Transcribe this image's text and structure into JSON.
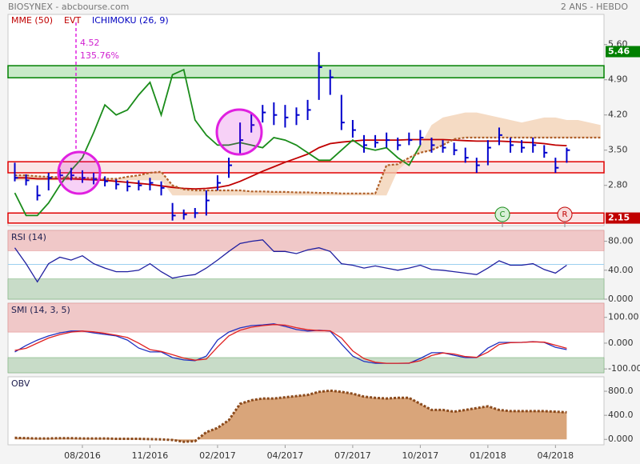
{
  "chart_data": [
    {
      "type": "ohlc",
      "title": "BIOSYNEX - abcbourse.com",
      "subtitle": "2 ANS - HEBDO",
      "indicators": [
        {
          "name": "MME (50)",
          "color": "#c00000"
        },
        {
          "name": "EVT",
          "color": "#c00000"
        },
        {
          "name": "ICHIMOKU (26, 9)",
          "color": "#0000c0"
        }
      ],
      "categories": [
        null,
        null,
        null,
        null,
        null,
        null,
        "08/2016",
        null,
        null,
        null,
        null,
        null,
        "11/2016",
        null,
        null,
        null,
        null,
        null,
        "02/2017",
        null,
        null,
        null,
        null,
        null,
        "04/2017",
        null,
        null,
        null,
        null,
        null,
        "07/2017",
        null,
        null,
        null,
        null,
        null,
        "10/2017",
        null,
        null,
        null,
        null,
        null,
        "01/2018",
        null,
        null,
        null,
        null,
        null,
        "04/2018",
        null,
        null,
        null,
        null
      ],
      "color": "#0000cc",
      "high": [
        3.25,
        3.02,
        2.8,
        3.05,
        3.12,
        3.15,
        3.1,
        3.05,
        2.98,
        2.92,
        2.9,
        2.9,
        2.95,
        2.88,
        2.45,
        2.32,
        2.35,
        2.7,
        3.0,
        3.35,
        4.05,
        4.25,
        4.4,
        4.45,
        4.4,
        4.35,
        4.5,
        5.45,
        5.1,
        4.6,
        4.1,
        3.8,
        3.8,
        3.85,
        3.75,
        3.85,
        3.9,
        3.75,
        3.7,
        3.65,
        3.55,
        3.35,
        3.7,
        3.95,
        3.75,
        3.7,
        3.75,
        3.6,
        3.35,
        3.55,
        null,
        null,
        null
      ],
      "low": [
        2.88,
        2.8,
        2.5,
        2.7,
        2.88,
        2.9,
        2.85,
        2.82,
        2.78,
        2.72,
        2.68,
        2.7,
        2.7,
        2.6,
        2.1,
        2.12,
        2.15,
        2.2,
        2.7,
        2.95,
        3.4,
        3.85,
        4.05,
        4.0,
        3.95,
        4.0,
        4.1,
        4.5,
        4.6,
        3.9,
        3.75,
        3.45,
        3.55,
        3.55,
        3.5,
        3.6,
        3.6,
        3.45,
        3.45,
        3.4,
        3.25,
        3.05,
        3.2,
        3.6,
        3.45,
        3.45,
        3.45,
        3.35,
        3.05,
        3.25,
        null,
        null,
        null
      ],
      "close": [
        2.95,
        2.9,
        2.6,
        2.95,
        3.0,
        3.0,
        2.95,
        2.92,
        2.88,
        2.82,
        2.78,
        2.8,
        2.85,
        2.75,
        2.2,
        2.22,
        2.25,
        2.5,
        2.85,
        3.2,
        3.7,
        4.0,
        4.25,
        4.2,
        4.15,
        4.2,
        4.3,
        5.15,
        4.95,
        4.05,
        3.9,
        3.6,
        3.65,
        3.7,
        3.6,
        3.7,
        3.75,
        3.6,
        3.55,
        3.5,
        3.35,
        3.2,
        3.55,
        3.8,
        3.6,
        3.55,
        3.6,
        3.45,
        3.15,
        3.5,
        null,
        null,
        null
      ],
      "series": [
        {
          "name": "MME (50)",
          "color": "#c00000",
          "values": [
            2.95,
            2.95,
            2.93,
            2.93,
            2.93,
            2.93,
            2.92,
            2.91,
            2.9,
            2.88,
            2.86,
            2.84,
            2.82,
            2.79,
            2.76,
            2.74,
            2.73,
            2.74,
            2.76,
            2.8,
            2.88,
            2.98,
            3.08,
            3.17,
            3.26,
            3.34,
            3.42,
            3.55,
            3.63,
            3.66,
            3.68,
            3.7,
            3.7,
            3.7,
            3.7,
            3.71,
            3.71,
            3.71,
            3.71,
            3.7,
            3.69,
            3.68,
            3.68,
            3.68,
            3.67,
            3.66,
            3.65,
            3.63,
            3.6,
            3.59,
            null,
            null,
            null
          ]
        },
        {
          "color": "#1a8c1a",
          "values": [
            2.65,
            2.2,
            2.2,
            2.45,
            2.8,
            3.1,
            3.35,
            3.85,
            4.4,
            4.2,
            4.3,
            4.6,
            4.85,
            4.2,
            5.0,
            5.1,
            4.1,
            3.8,
            3.6,
            3.6,
            3.65,
            3.6,
            3.55,
            3.75,
            3.7,
            3.6,
            3.45,
            3.3,
            3.3,
            3.5,
            3.7,
            3.55,
            3.5,
            3.55,
            3.35,
            3.2,
            3.6,
            null,
            null,
            null,
            null,
            null,
            null,
            null,
            null,
            null,
            null,
            null,
            null,
            null,
            null,
            null,
            null
          ]
        },
        {
          "color": "#b0602a",
          "style": "dotted",
          "values": [
            3.0,
            3.0,
            2.98,
            2.97,
            2.96,
            2.96,
            2.95,
            2.94,
            2.93,
            2.93,
            2.97,
            3.0,
            3.05,
            3.07,
            2.8,
            2.72,
            2.7,
            2.7,
            2.7,
            2.7,
            2.7,
            2.68,
            2.68,
            2.67,
            2.67,
            2.66,
            2.66,
            2.65,
            2.65,
            2.64,
            2.64,
            2.64,
            2.64,
            3.2,
            3.22,
            3.35,
            3.45,
            3.5,
            3.6,
            3.72,
            3.75,
            3.75,
            3.75,
            3.75,
            3.75,
            3.75,
            3.75,
            3.75,
            3.75,
            3.75,
            3.75,
            3.75,
            3.75
          ]
        }
      ],
      "cloud": {
        "color": "#f2cfb0",
        "values": [
          2.9,
          2.9,
          2.9,
          2.9,
          2.9,
          2.9,
          2.9,
          2.9,
          2.9,
          2.9,
          2.9,
          2.9,
          2.9,
          2.9,
          2.6,
          2.6,
          2.6,
          2.6,
          2.6,
          2.6,
          2.6,
          2.6,
          2.6,
          2.6,
          2.6,
          2.6,
          2.6,
          2.6,
          2.6,
          2.6,
          2.6,
          2.6,
          2.6,
          2.6,
          3.1,
          3.3,
          3.6,
          4.0,
          4.15,
          4.2,
          4.25,
          4.25,
          4.2,
          4.15,
          4.1,
          4.05,
          4.1,
          4.15,
          4.15,
          4.1,
          4.1,
          4.05,
          4.0
        ]
      },
      "zones": [
        {
          "range": [
            4.94,
            5.18
          ],
          "color": "#008000",
          "fill": "#c8eac8"
        },
        {
          "range": [
            3.05,
            3.27
          ],
          "color": "#e00000",
          "fill": "#fbe6e6"
        },
        {
          "range": [
            2.05,
            2.25
          ],
          "color": "#e00000",
          "fill": "#fbe6e6"
        }
      ],
      "price_labels": [
        {
          "value": 5.46,
          "color": "#008000"
        },
        {
          "value": 2.15,
          "color": "#c00000"
        }
      ],
      "event_labels": [
        "4.52",
        "135.76%"
      ],
      "signals": [
        "C",
        "R"
      ],
      "ylim": [
        2.0,
        6.2
      ],
      "yticks": [
        {
          "value": 5.6,
          "label": "5.60"
        },
        {
          "value": 4.9,
          "label": "4.90"
        },
        {
          "value": 4.2,
          "label": "4.20"
        },
        {
          "value": 3.5,
          "label": "3.50"
        },
        {
          "value": 2.8,
          "label": "2.80"
        }
      ]
    },
    {
      "type": "line",
      "title": "RSI (14)",
      "series": [
        {
          "color": "#2020a0",
          "values": [
            71,
            49,
            24,
            49,
            58,
            54,
            60,
            49,
            43,
            38,
            38,
            40,
            49,
            38,
            29,
            32,
            34,
            43,
            54,
            66,
            77,
            80,
            82,
            66,
            66,
            63,
            68,
            71,
            66,
            49,
            47,
            43,
            46,
            43,
            40,
            43,
            47,
            41,
            40,
            38,
            36,
            34,
            43,
            53,
            47,
            47,
            49,
            41,
            36,
            47
          ]
        }
      ],
      "zones": {
        "upper": 67,
        "lower": 28,
        "mid": 48
      },
      "ylim": [
        0,
        95
      ],
      "yticks": [
        {
          "value": 80,
          "label": "80.00"
        },
        {
          "value": 40,
          "label": "40.00"
        },
        {
          "value": 0,
          "label": "0.000"
        }
      ]
    },
    {
      "type": "line",
      "title": "SMI (14, 3, 5)",
      "series": [
        {
          "color": "#2030c0",
          "values": [
            -34,
            -9,
            12,
            28,
            40,
            47,
            47,
            40,
            34,
            28,
            12,
            -19,
            -34,
            -34,
            -56,
            -65,
            -68,
            -50,
            12,
            43,
            59,
            68,
            71,
            75,
            65,
            53,
            47,
            50,
            47,
            -3,
            -50,
            -71,
            -78,
            -78,
            -78,
            -78,
            -59,
            -37,
            -37,
            -47,
            -56,
            -56,
            -19,
            3,
            3,
            3,
            6,
            3,
            -16,
            -25
          ]
        },
        {
          "color": "#e02020",
          "values": [
            -28,
            -20,
            0,
            20,
            33,
            43,
            47,
            44,
            38,
            31,
            22,
            0,
            -25,
            -32,
            -45,
            -58,
            -66,
            -62,
            -15,
            28,
            50,
            62,
            68,
            72,
            70,
            60,
            52,
            49,
            48,
            20,
            -30,
            -60,
            -74,
            -78,
            -78,
            -77,
            -68,
            -48,
            -38,
            -42,
            -52,
            -55,
            -35,
            -5,
            2,
            3,
            5,
            4,
            -8,
            -20
          ]
        }
      ],
      "zones": {
        "upper": 43,
        "lower": -56
      },
      "ylim": [
        -115,
        155
      ],
      "yticks": [
        {
          "value": 100,
          "label": "100.00"
        },
        {
          "value": 0,
          "label": "0.000"
        },
        {
          "value": -100,
          "label": "-100.00"
        }
      ]
    },
    {
      "type": "area",
      "title": "OBV",
      "color": "#d9a57a",
      "edge": "#8b4a1c",
      "values": [
        25,
        20,
        15,
        15,
        20,
        20,
        15,
        15,
        15,
        10,
        10,
        10,
        5,
        0,
        -10,
        -40,
        -30,
        120,
        190,
        320,
        590,
        650,
        680,
        680,
        700,
        720,
        740,
        790,
        810,
        790,
        760,
        710,
        690,
        680,
        690,
        690,
        590,
        490,
        490,
        460,
        490,
        520,
        550,
        490,
        470,
        470,
        470,
        470,
        460,
        450
      ],
      "ylim": [
        -90,
        1040
      ],
      "yticks": [
        {
          "value": 800,
          "label": "800.0"
        },
        {
          "value": 400,
          "label": "400.0"
        },
        {
          "value": 0,
          "label": "0.000"
        }
      ]
    }
  ]
}
